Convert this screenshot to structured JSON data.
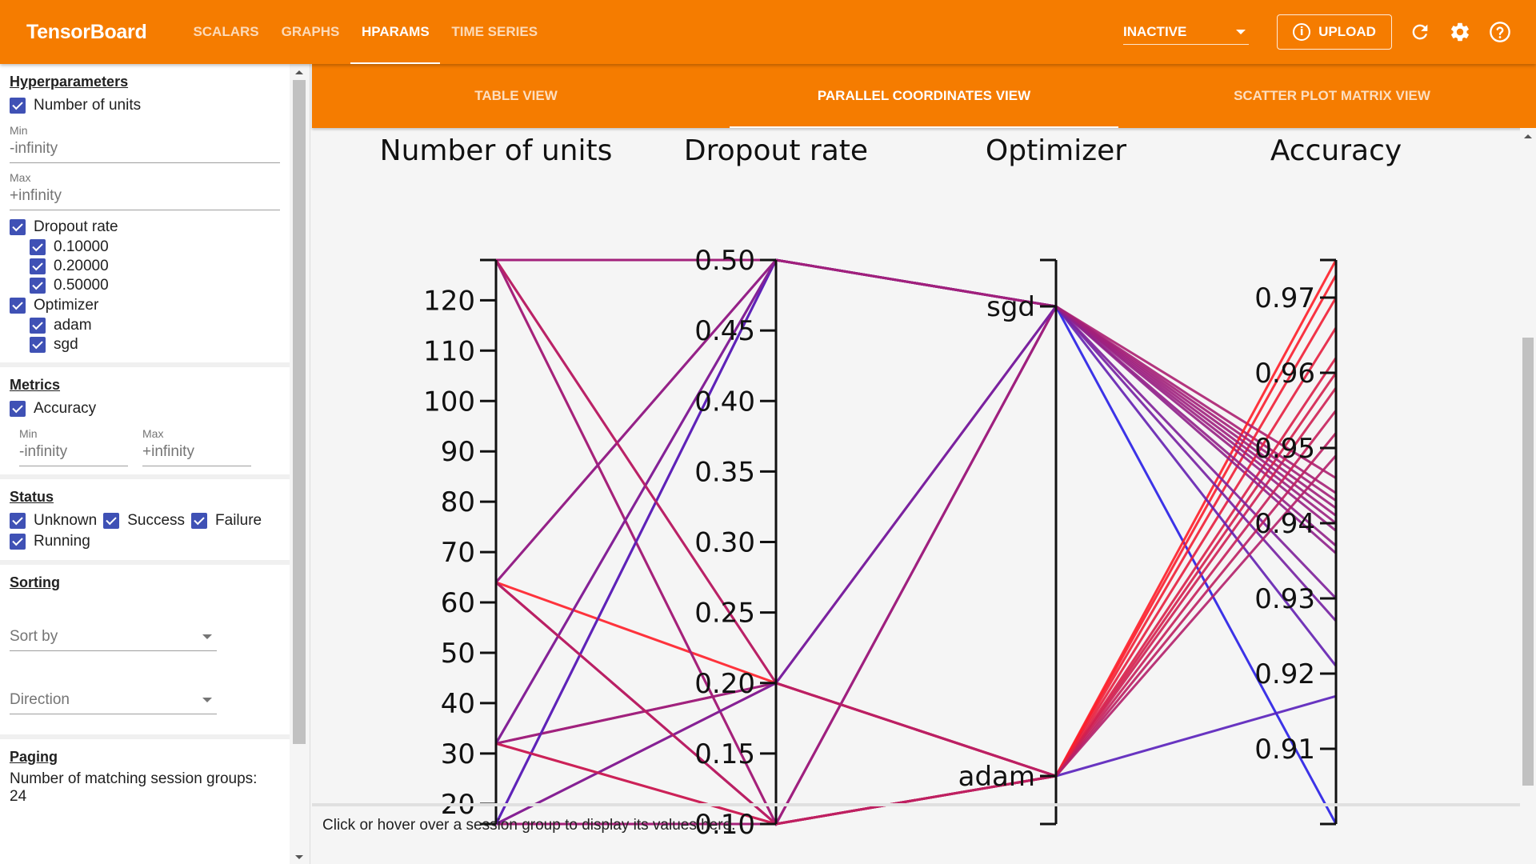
{
  "app": {
    "brand": "TensorBoard",
    "nav_tabs": [
      "SCALARS",
      "GRAPHS",
      "HPARAMS",
      "TIME SERIES"
    ],
    "active_tab": "HPARAMS",
    "run_select": "INACTIVE",
    "upload_label": "UPLOAD",
    "icons": [
      "refresh-icon",
      "settings-gear-icon",
      "help-icon"
    ]
  },
  "sidebar": {
    "hyperparameters": {
      "title": "Hyperparameters",
      "units_label": "Number of units",
      "min_label": "Min",
      "min_value": "-infinity",
      "max_label": "Max",
      "max_value": "+infinity",
      "dropout_label": "Dropout rate",
      "dropout_values": [
        "0.10000",
        "0.20000",
        "0.50000"
      ],
      "optimizer_label": "Optimizer",
      "optimizer_values": [
        "adam",
        "sgd"
      ]
    },
    "metrics": {
      "title": "Metrics",
      "accuracy_label": "Accuracy",
      "min_label": "Min",
      "min_value": "-infinity",
      "max_label": "Max",
      "max_value": "+infinity"
    },
    "status": {
      "title": "Status",
      "items": [
        "Unknown",
        "Success",
        "Failure",
        "Running"
      ]
    },
    "sorting": {
      "title": "Sorting",
      "sort_by": "Sort by",
      "direction": "Direction"
    },
    "paging": {
      "title": "Paging",
      "matching_label": "Number of matching session groups:",
      "matching_count": "24"
    }
  },
  "main": {
    "subtabs": [
      "TABLE VIEW",
      "PARALLEL COORDINATES VIEW",
      "SCATTER PLOT MATRIX VIEW"
    ],
    "active_subtab": "PARALLEL COORDINATES VIEW",
    "info_text": "Click or hover over a session group to display its values here."
  },
  "chart_data": {
    "type": "parallel-coordinates",
    "axes": [
      {
        "name": "Number of units",
        "ticks": [
          "120",
          "110",
          "100",
          "90",
          "80",
          "70",
          "60",
          "50",
          "40",
          "30",
          "20"
        ],
        "range": [
          16,
          128
        ]
      },
      {
        "name": "Dropout rate",
        "ticks": [
          "0.50",
          "0.45",
          "0.40",
          "0.35",
          "0.30",
          "0.25",
          "0.20",
          "0.15",
          "0.10"
        ],
        "range": [
          0.1,
          0.5
        ]
      },
      {
        "name": "Optimizer",
        "ticks": [
          "sgd",
          "adam"
        ],
        "categorical": true
      },
      {
        "name": "Accuracy",
        "ticks": [
          "0.97",
          "0.96",
          "0.95",
          "0.94",
          "0.93",
          "0.92",
          "0.91"
        ],
        "range": [
          0.9,
          0.975
        ]
      }
    ],
    "sessions": [
      [
        16,
        0.5,
        "sgd",
        0.9
      ],
      [
        16,
        0.1,
        "adam",
        0.917
      ],
      [
        16,
        0.2,
        "adam",
        0.973
      ],
      [
        16,
        0.1,
        "sgd",
        0.946
      ],
      [
        32,
        0.5,
        "sgd",
        0.944
      ],
      [
        32,
        0.2,
        "adam",
        0.962
      ],
      [
        32,
        0.1,
        "adam",
        0.97
      ],
      [
        32,
        0.2,
        "sgd",
        0.939
      ],
      [
        64,
        0.5,
        "sgd",
        0.942
      ],
      [
        64,
        0.1,
        "adam",
        0.96
      ],
      [
        64,
        0.2,
        "adam",
        0.975
      ],
      [
        64,
        0.1,
        "sgd",
        0.94
      ],
      [
        128,
        0.5,
        "sgd",
        0.936
      ],
      [
        128,
        0.1,
        "adam",
        0.958
      ],
      [
        128,
        0.2,
        "adam",
        0.966
      ],
      [
        128,
        0.1,
        "sgd",
        0.941
      ],
      [
        16,
        0.5,
        "sgd",
        0.921
      ],
      [
        16,
        0.2,
        "sgd",
        0.927
      ],
      [
        32,
        0.5,
        "sgd",
        0.93
      ],
      [
        64,
        0.5,
        "sgd",
        0.937
      ],
      [
        128,
        0.5,
        "sgd",
        0.943
      ],
      [
        32,
        0.1,
        "adam",
        0.955
      ],
      [
        64,
        0.1,
        "adam",
        0.952
      ],
      [
        128,
        0.2,
        "adam",
        0.949
      ]
    ]
  }
}
